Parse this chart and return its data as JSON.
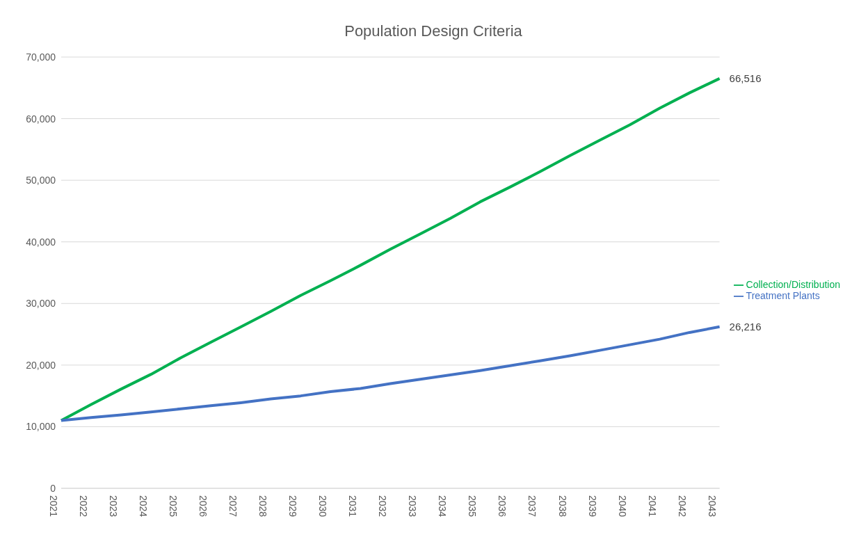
{
  "chart_data": {
    "type": "line",
    "title": "Population Design Criteria",
    "categories": [
      "2021",
      "2022",
      "2023",
      "2024",
      "2025",
      "2026",
      "2027",
      "2028",
      "2029",
      "2030",
      "2031",
      "2032",
      "2033",
      "2034",
      "2035",
      "2036",
      "2037",
      "2038",
      "2039",
      "2040",
      "2041",
      "2042",
      "2043"
    ],
    "series": [
      {
        "name": "Collection/Distribution",
        "color": "#00b050",
        "values": [
          11000,
          13600,
          16100,
          18500,
          21200,
          23700,
          26200,
          28700,
          31300,
          33700,
          36200,
          38800,
          41300,
          43800,
          46500,
          48900,
          51400,
          54000,
          56500,
          59000,
          61700,
          64200,
          66516
        ],
        "value_labels": [
          null,
          null,
          null,
          null,
          null,
          null,
          null,
          null,
          null,
          null,
          null,
          null,
          null,
          null,
          null,
          null,
          null,
          null,
          null,
          null,
          null,
          null,
          "66,516"
        ]
      },
      {
        "name": "Treatment Plants",
        "color": "#4472c4",
        "values": [
          11000,
          11500,
          11900,
          12400,
          12900,
          13400,
          13900,
          14500,
          15000,
          15700,
          16200,
          17000,
          17700,
          18400,
          19100,
          19900,
          20700,
          21500,
          22400,
          23300,
          24200,
          25300,
          26216
        ],
        "value_labels": [
          null,
          null,
          null,
          null,
          null,
          null,
          null,
          null,
          null,
          null,
          null,
          null,
          null,
          null,
          null,
          null,
          null,
          null,
          null,
          null,
          null,
          null,
          "26,216"
        ]
      }
    ],
    "ylim": [
      0,
      70000
    ],
    "yticks": [
      0,
      {
        "value": 10000,
        "label": "10,000"
      },
      {
        "value": 20000,
        "label": "20,000"
      },
      {
        "value": 30000,
        "label": "30,000"
      },
      {
        "value": 40000,
        "label": "40,000"
      },
      {
        "value": 50000,
        "label": "50,000"
      },
      {
        "value": 60000,
        "label": "60,000"
      },
      {
        "value": 70000,
        "label": "70,000"
      }
    ],
    "grid": "y",
    "legend": "right",
    "marker": "none",
    "line_style": "solid"
  }
}
